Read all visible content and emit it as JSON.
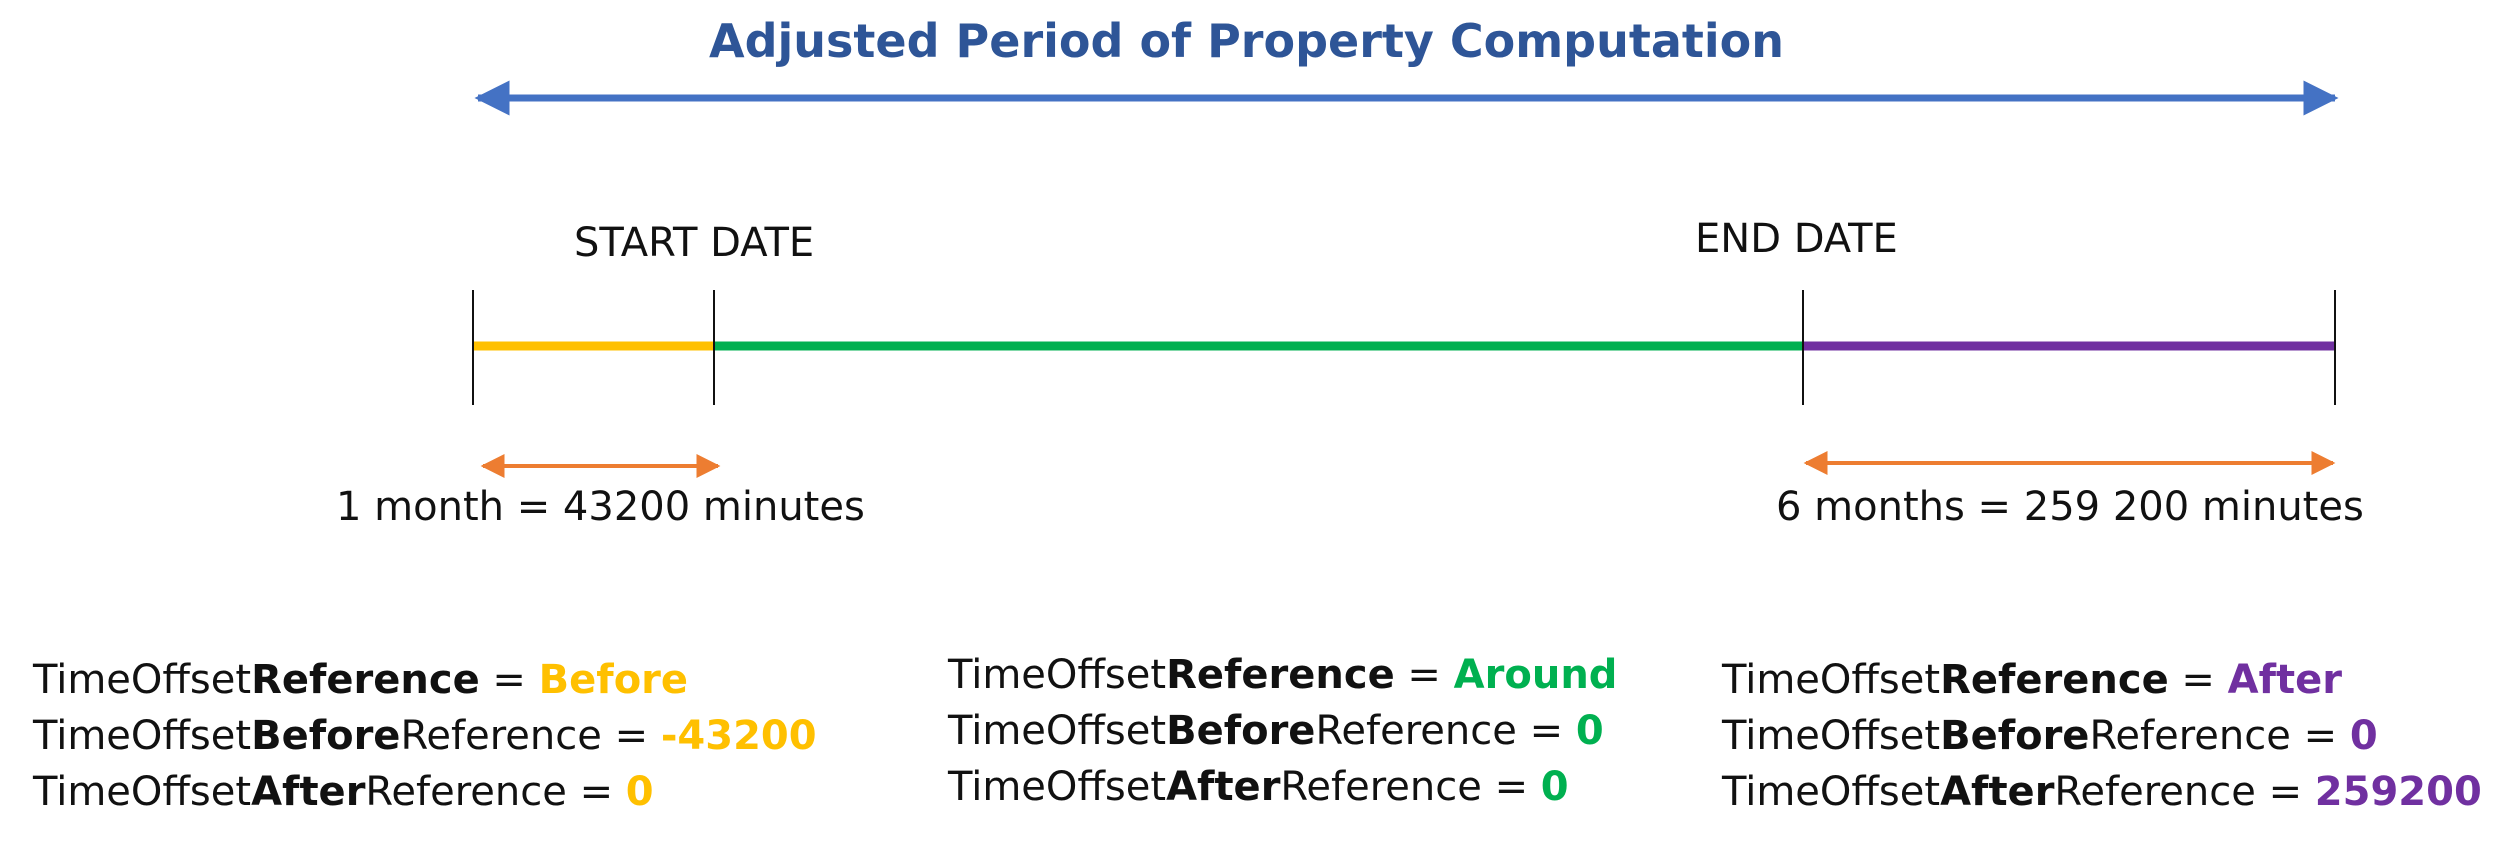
{
  "title": "Adjusted Period of Property Computation",
  "dates": {
    "start": "START DATE",
    "end": "END DATE"
  },
  "durations": {
    "before": "1 month = 43200 minutes",
    "after": "6 months = 259 200 minutes"
  },
  "colors": {
    "title": "#2e5597",
    "period_arrow": "#4472c4",
    "before": "#ffc000",
    "around": "#00b050",
    "after": "#7030a0",
    "duration_arrow": "#ed7d31"
  },
  "blocks": [
    {
      "id": "before",
      "ref_prefix": "TimeOffset",
      "ref_bold": "Reference",
      "ref_eq": " = ",
      "ref_value": "Before",
      "before_prefix": "TimeOffset",
      "before_bold": "Before",
      "before_suffix": "Reference = ",
      "before_value": "-43200",
      "after_prefix": "TimeOffset",
      "after_bold": "After",
      "after_suffix": "Reference = ",
      "after_value": "0"
    },
    {
      "id": "around",
      "ref_prefix": "TimeOffset",
      "ref_bold": "Reference",
      "ref_eq": " = ",
      "ref_value": "Around",
      "before_prefix": "TimeOffset",
      "before_bold": "Before",
      "before_suffix": "Reference = ",
      "before_value": "0",
      "after_prefix": "TimeOffset",
      "after_bold": "After",
      "after_suffix": "Reference = ",
      "after_value": "0"
    },
    {
      "id": "after",
      "ref_prefix": "TimeOffset",
      "ref_bold": "Reference",
      "ref_eq": " = ",
      "ref_value": "After",
      "before_prefix": "TimeOffset",
      "before_bold": "Before",
      "before_suffix": "Reference = ",
      "before_value": "0",
      "after_prefix": "TimeOffset",
      "after_bold": "After",
      "after_suffix": "Reference = ",
      "after_value": "259200"
    }
  ]
}
